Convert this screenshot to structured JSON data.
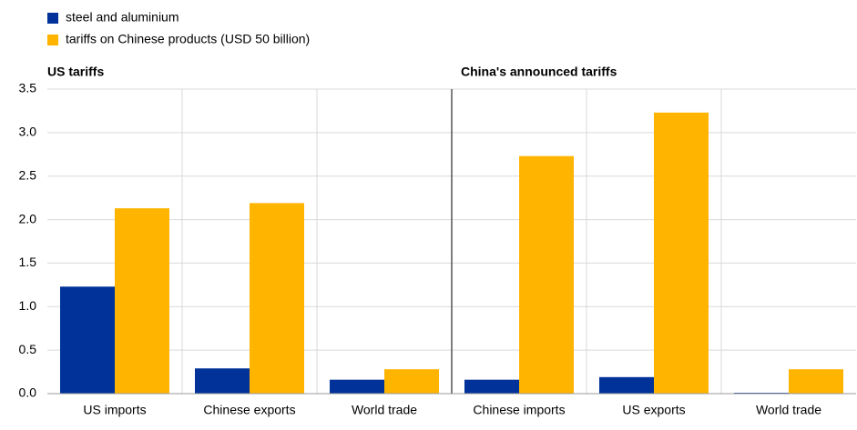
{
  "chart_data": {
    "type": "bar",
    "panel_titles": [
      "US tariffs",
      "China's announced tariffs"
    ],
    "categories": [
      "US imports",
      "Chinese exports",
      "World trade",
      "Chinese imports",
      "US exports",
      "World trade"
    ],
    "series": [
      {
        "name": "steel and aluminium",
        "color": "#003299",
        "values": [
          1.23,
          0.29,
          0.16,
          0.16,
          0.19,
          0.01
        ]
      },
      {
        "name": "tariffs on Chinese products (USD 50 billion)",
        "color": "#ffb400",
        "values": [
          2.13,
          2.19,
          0.28,
          2.73,
          3.23,
          0.28
        ]
      }
    ],
    "ylim": [
      0,
      3.5
    ],
    "yticks": [
      {
        "value": 0,
        "label": "0.0"
      },
      0.5,
      {
        "value": 1,
        "label": "1.0"
      },
      1.5,
      {
        "value": 2,
        "label": "2.0"
      },
      2.5,
      {
        "value": 3,
        "label": "3.0"
      },
      3.5
    ],
    "grid": true
  }
}
